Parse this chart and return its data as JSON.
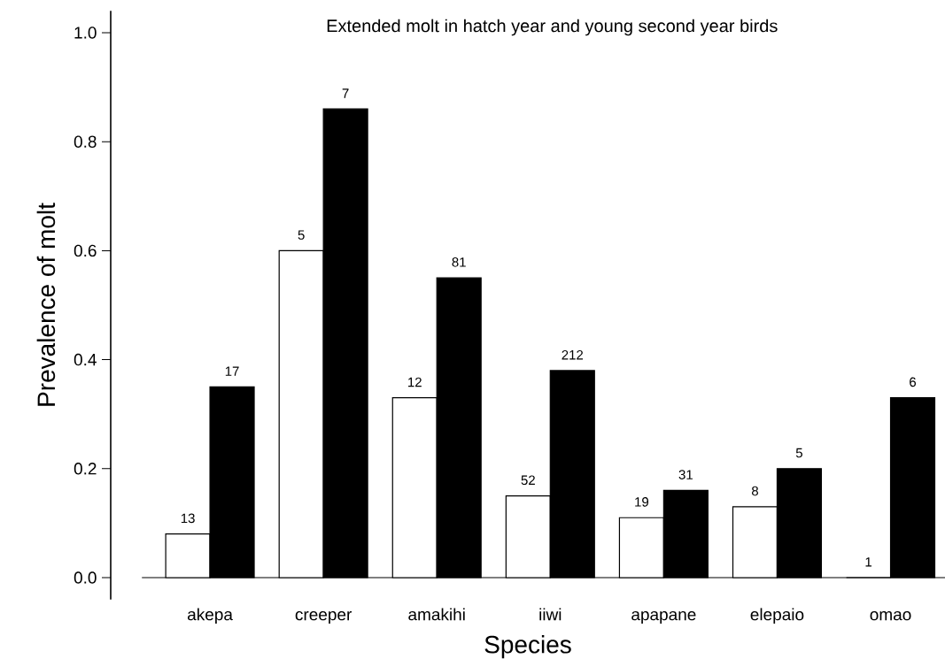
{
  "chart_data": {
    "type": "bar",
    "title": "Extended molt in hatch year and young second year birds",
    "xlabel": "Species",
    "ylabel": "Prevalence of molt",
    "categories": [
      "akepa",
      "creeper",
      "amakihi",
      "iiwi",
      "apapane",
      "elepaio",
      "omao"
    ],
    "series": [
      {
        "color": "#ffffff",
        "values": [
          0.08,
          0.6,
          0.33,
          0.15,
          0.11,
          0.13,
          0
        ]
      },
      {
        "color": "#000000",
        "values": [
          0.35,
          0.86,
          0.55,
          0.38,
          0.16,
          0.2,
          0.33
        ]
      }
    ],
    "annotations": [
      {
        "text": "13",
        "x": "akepa",
        "y": 0.08
      },
      {
        "text": "5",
        "x": "creeper",
        "y": 0.6
      },
      {
        "text": "12",
        "x": "amakihi",
        "y": 0.33
      },
      {
        "text": "52",
        "x": "iiwi",
        "y": 0.15
      },
      {
        "text": "19",
        "x": "apapane",
        "y": 0.11
      },
      {
        "text": "8",
        "x": "elepaio",
        "y": 0.13
      },
      {
        "text": "1",
        "x": "omao",
        "y": 0
      },
      {
        "text": "17",
        "x": "akepa",
        "y": 0.35
      },
      {
        "text": "7",
        "x": "creeper",
        "y": 0.86
      },
      {
        "text": "81",
        "x": "amakihi",
        "y": 0.55
      },
      {
        "text": "212",
        "x": "iiwi",
        "y": 0.38
      },
      {
        "text": "31",
        "x": "apapane",
        "y": 0.16
      },
      {
        "text": "5",
        "x": "elepaio",
        "y": 0.2
      },
      {
        "text": "6",
        "x": "omao",
        "y": 0.33
      }
    ],
    "ylim": [
      -0.04,
      1.04
    ],
    "yticks": [
      {
        "value": 0,
        "label": "0.0"
      },
      {
        "value": 0.2,
        "label": "0.2"
      },
      {
        "value": 0.4,
        "label": "0.4"
      },
      {
        "value": 0.6,
        "label": "0.6"
      },
      {
        "value": 0.8,
        "label": "0.8"
      },
      {
        "value": 1,
        "label": "1.0"
      }
    ],
    "grid": false,
    "legend": false
  }
}
